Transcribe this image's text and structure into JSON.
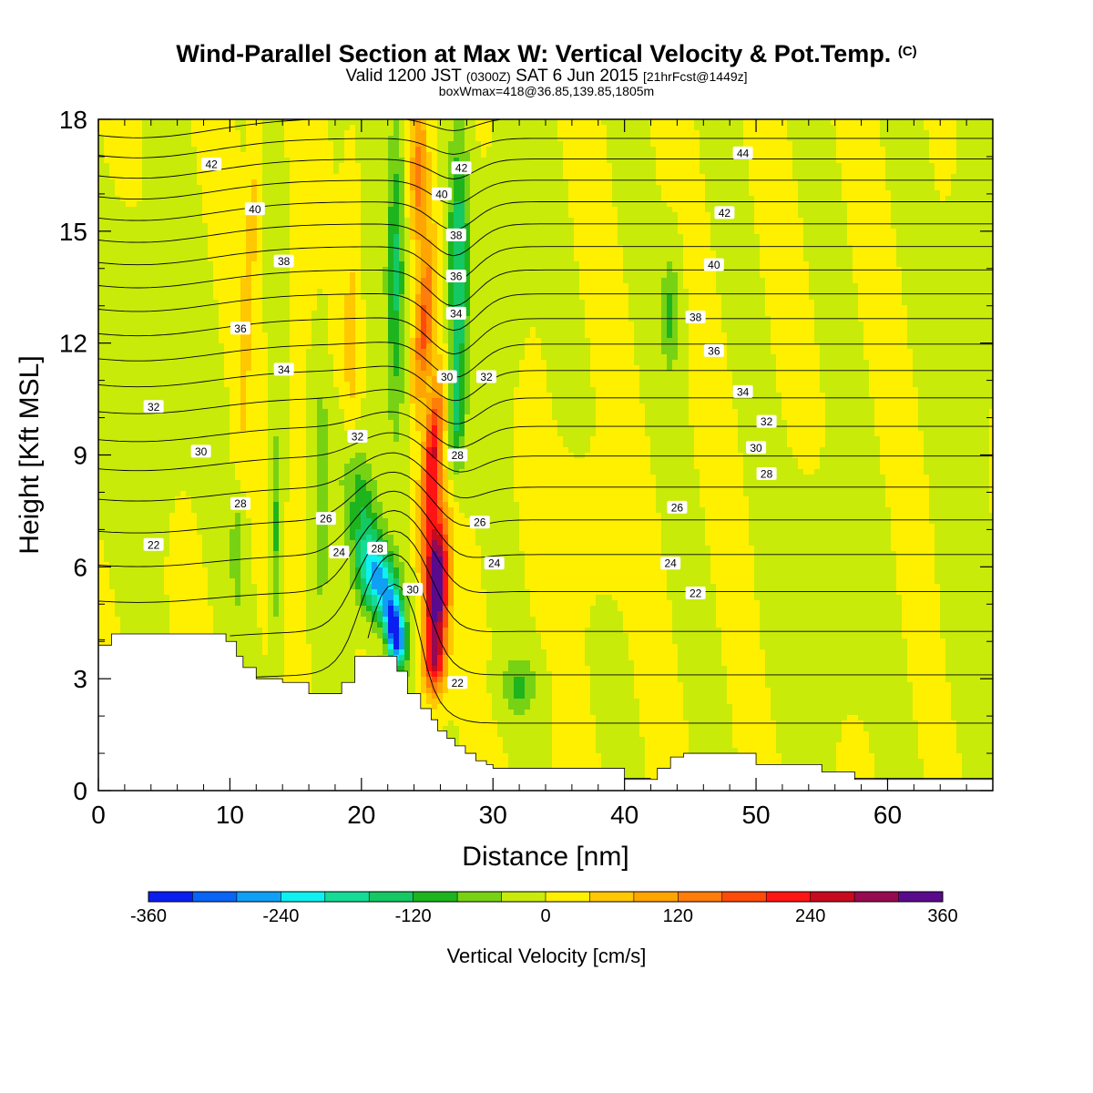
{
  "header": {
    "title": "Wind-Parallel Section at Max W: Vertical Velocity & Pot.Temp.",
    "copyright": "(C)",
    "subtitle_main": "Valid 1200 JST",
    "subtitle_utc": "(0300Z)",
    "subtitle_date": "SAT 6 Jun 2015",
    "subtitle_fcst": "[21hrFcst@1449z]",
    "subtitle2": "boxWmax=418@36.85,139.85,1805m"
  },
  "colors": {
    "palette": [
      "#0a1ef0",
      "#0a64f5",
      "#0fa0f5",
      "#0ff0f0",
      "#14dc96",
      "#14c864",
      "#1eb41e",
      "#78d214",
      "#c8eb0a",
      "#fff000",
      "#ffc800",
      "#ffa500",
      "#ff7d0a",
      "#ff4b0a",
      "#ff1414",
      "#c80a1e",
      "#960a50",
      "#5a0a8c"
    ],
    "terrain": "#ffffff",
    "contour": "#000000"
  },
  "colorbar": {
    "labels": [
      "-360",
      "-240",
      "-120",
      "0",
      "120",
      "240",
      "360"
    ],
    "title": "Vertical Velocity [cm/s]"
  },
  "chart_data": {
    "type": "heatmap",
    "title": "Wind-Parallel Section at Max W: Vertical Velocity & Pot.Temp.",
    "xlabel": "Distance [nm]",
    "ylabel": "Height [Kft MSL]",
    "xlim": [
      0,
      68
    ],
    "ylim": [
      0,
      18
    ],
    "xticks": [
      "0",
      "10",
      "20",
      "30",
      "40",
      "50",
      "60"
    ],
    "yticks": [
      "0",
      "3",
      "6",
      "9",
      "12",
      "15",
      "18"
    ],
    "colorbar_range": [
      -360,
      360
    ],
    "colorbar_step": 40,
    "w_features": [
      {
        "x": 25.7,
        "z": 5.5,
        "w": 390,
        "sx": 0.9,
        "sz": 2.0,
        "tilt": 0.05
      },
      {
        "x": 25.4,
        "z": 9.0,
        "w": 230,
        "sx": 0.7,
        "sz": 2.0,
        "tilt": 0.25
      },
      {
        "x": 24.8,
        "z": 12.5,
        "w": 170,
        "sx": 0.7,
        "sz": 2.2,
        "tilt": 0.2
      },
      {
        "x": 24.4,
        "z": 16.5,
        "w": 140,
        "sx": 0.7,
        "sz": 2.0,
        "tilt": 0.0
      },
      {
        "x": 25.5,
        "z": 3.4,
        "w": 160,
        "sx": 0.8,
        "sz": 0.8,
        "tilt": 0.0
      },
      {
        "x": 22.6,
        "z": 4.2,
        "w": -360,
        "sx": 0.7,
        "sz": 0.9,
        "tilt": -0.3
      },
      {
        "x": 21.3,
        "z": 5.6,
        "w": -220,
        "sx": 1.5,
        "sz": 1.1,
        "tilt": -0.5
      },
      {
        "x": 20.0,
        "z": 7.5,
        "w": -120,
        "sx": 1.4,
        "sz": 2.0,
        "tilt": -0.4
      },
      {
        "x": 22.6,
        "z": 14.0,
        "w": -130,
        "sx": 0.7,
        "sz": 4.0,
        "tilt": 0.0
      },
      {
        "x": 27.4,
        "z": 14.0,
        "w": -160,
        "sx": 0.8,
        "sz": 3.5,
        "tilt": 0.0
      },
      {
        "x": 27.2,
        "z": 10.0,
        "w": -100,
        "sx": 0.6,
        "sz": 1.5,
        "tilt": 0.0
      },
      {
        "x": 11.3,
        "z": 13.0,
        "w": 70,
        "sx": 0.5,
        "sz": 5.0,
        "tilt": 0.15
      },
      {
        "x": 10.5,
        "z": 6.5,
        "w": -80,
        "sx": 0.5,
        "sz": 1.8,
        "tilt": 0.0
      },
      {
        "x": 13.5,
        "z": 7.0,
        "w": -90,
        "sx": 0.45,
        "sz": 2.8,
        "tilt": 0.0
      },
      {
        "x": 17.0,
        "z": 8.0,
        "w": -70,
        "sx": 0.5,
        "sz": 3.5,
        "tilt": 0.0
      },
      {
        "x": 15.2,
        "z": 9.0,
        "w": 45,
        "sx": 0.5,
        "sz": 4.0,
        "tilt": 0.0
      },
      {
        "x": 19.2,
        "z": 12.0,
        "w": 55,
        "sx": 0.6,
        "sz": 4.0,
        "tilt": 0.0
      },
      {
        "x": 32.0,
        "z": 2.8,
        "w": -85,
        "sx": 1.3,
        "sz": 0.8,
        "tilt": 0.0
      },
      {
        "x": 43.5,
        "z": 12.8,
        "w": -90,
        "sx": 0.7,
        "sz": 1.6,
        "tilt": 0.0
      },
      {
        "x": 3.0,
        "z": 11.0,
        "w": -35,
        "sx": 3.0,
        "sz": 3.5,
        "tilt": 0.0
      },
      {
        "x": 31.0,
        "z": 14.5,
        "w": -30,
        "sx": 1.5,
        "sz": 3.0,
        "tilt": 0.0
      },
      {
        "x": 66.0,
        "z": 10.0,
        "w": -30,
        "sx": 1.5,
        "sz": 6.0,
        "tilt": 0.0
      },
      {
        "x": 55.0,
        "z": 5.0,
        "w": -25,
        "sx": 3.0,
        "sz": 3.0,
        "tilt": 0.0
      },
      {
        "x": 37.0,
        "z": 7.0,
        "w": 15,
        "sx": 3.0,
        "sz": 2.0,
        "tilt": 0.0
      }
    ],
    "terrain": {
      "x": [
        0,
        1,
        1,
        9.7,
        9.7,
        10.5,
        10.5,
        11,
        11,
        12,
        12,
        14,
        14,
        16,
        16,
        18.5,
        18.5,
        19.5,
        19.5,
        22.7,
        22.7,
        23.5,
        23.5,
        24.5,
        24.5,
        25.3,
        25.3,
        25.8,
        25.8,
        26.5,
        26.5,
        27.1,
        27.1,
        27.9,
        27.9,
        28.7,
        28.7,
        29.5,
        29.5,
        30,
        30,
        40,
        40,
        42.5,
        42.5,
        43.5,
        43.5,
        44.5,
        44.5,
        50,
        50,
        55,
        55,
        57.5,
        57.5,
        68
      ],
      "z": [
        3.9,
        3.9,
        4.2,
        4.2,
        4.0,
        4.0,
        3.6,
        3.6,
        3.3,
        3.3,
        3.0,
        3.0,
        2.9,
        2.9,
        2.6,
        2.6,
        2.9,
        2.9,
        3.6,
        3.6,
        3.2,
        3.2,
        2.6,
        2.6,
        2.2,
        2.2,
        1.9,
        1.9,
        1.6,
        1.6,
        1.4,
        1.4,
        1.2,
        1.2,
        1.0,
        1.0,
        0.8,
        0.8,
        0.7,
        0.7,
        0.6,
        0.6,
        0.3,
        0.3,
        0.6,
        0.6,
        0.9,
        0.9,
        1.0,
        1.0,
        0.7,
        0.7,
        0.5,
        0.5,
        0.3,
        0.3
      ]
    },
    "theta_contours": {
      "min": 20,
      "max": 45,
      "interval": 1,
      "labels": [
        {
          "text": "42",
          "x": 8.6,
          "z": 16.8
        },
        {
          "text": "40",
          "x": 11.9,
          "z": 15.6
        },
        {
          "text": "38",
          "x": 14.1,
          "z": 14.2
        },
        {
          "text": "36",
          "x": 10.8,
          "z": 12.4
        },
        {
          "text": "34",
          "x": 14.1,
          "z": 11.3
        },
        {
          "text": "32",
          "x": 4.2,
          "z": 10.3
        },
        {
          "text": "30",
          "x": 7.8,
          "z": 9.1
        },
        {
          "text": "28",
          "x": 10.8,
          "z": 7.7
        },
        {
          "text": "26",
          "x": 17.3,
          "z": 7.3
        },
        {
          "text": "24",
          "x": 18.3,
          "z": 6.4
        },
        {
          "text": "22",
          "x": 4.2,
          "z": 6.6
        },
        {
          "text": "32",
          "x": 19.7,
          "z": 9.5
        },
        {
          "text": "28",
          "x": 21.2,
          "z": 6.5
        },
        {
          "text": "30",
          "x": 23.9,
          "z": 5.4
        },
        {
          "text": "42",
          "x": 27.6,
          "z": 16.7
        },
        {
          "text": "40",
          "x": 26.1,
          "z": 16.0
        },
        {
          "text": "38",
          "x": 27.2,
          "z": 14.9
        },
        {
          "text": "36",
          "x": 27.2,
          "z": 13.8
        },
        {
          "text": "34",
          "x": 27.2,
          "z": 12.8
        },
        {
          "text": "32",
          "x": 29.5,
          "z": 11.1
        },
        {
          "text": "30",
          "x": 26.5,
          "z": 11.1
        },
        {
          "text": "28",
          "x": 27.3,
          "z": 9.0
        },
        {
          "text": "26",
          "x": 29.0,
          "z": 7.2
        },
        {
          "text": "24",
          "x": 30.1,
          "z": 6.1
        },
        {
          "text": "22",
          "x": 27.3,
          "z": 2.9
        },
        {
          "text": "44",
          "x": 49.0,
          "z": 17.1
        },
        {
          "text": "42",
          "x": 47.6,
          "z": 15.5
        },
        {
          "text": "40",
          "x": 46.8,
          "z": 14.1
        },
        {
          "text": "38",
          "x": 45.4,
          "z": 12.7
        },
        {
          "text": "36",
          "x": 46.8,
          "z": 11.8
        },
        {
          "text": "34",
          "x": 49.0,
          "z": 10.7
        },
        {
          "text": "32",
          "x": 50.8,
          "z": 9.9
        },
        {
          "text": "30",
          "x": 50.0,
          "z": 9.2
        },
        {
          "text": "28",
          "x": 50.8,
          "z": 8.5
        },
        {
          "text": "26",
          "x": 44.0,
          "z": 7.6
        },
        {
          "text": "24",
          "x": 43.5,
          "z": 6.1
        },
        {
          "text": "22",
          "x": 45.4,
          "z": 5.3
        }
      ]
    }
  }
}
